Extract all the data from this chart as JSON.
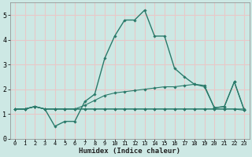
{
  "xlabel": "Humidex (Indice chaleur)",
  "ylabel": "",
  "xlim": [
    -0.5,
    23.5
  ],
  "ylim": [
    0,
    5.5
  ],
  "yticks": [
    0,
    1,
    2,
    3,
    4,
    5
  ],
  "xticks": [
    0,
    1,
    2,
    3,
    4,
    5,
    6,
    7,
    8,
    9,
    10,
    11,
    12,
    13,
    14,
    15,
    16,
    17,
    18,
    19,
    20,
    21,
    22,
    23
  ],
  "bg_color": "#cde8e4",
  "grid_color_major": "#e8c8c8",
  "grid_color_minor": "#e8c8c8",
  "line_color": "#2a7a6a",
  "marker_color": "#2a7a6a",
  "series": [
    {
      "x": [
        0,
        1,
        2,
        3,
        4,
        5,
        6,
        7,
        8,
        9,
        10,
        11,
        12,
        13,
        14,
        15,
        16,
        17,
        18,
        19,
        20,
        21,
        22,
        23
      ],
      "y": [
        1.2,
        1.2,
        1.3,
        1.2,
        0.5,
        0.7,
        0.7,
        1.5,
        1.8,
        3.25,
        4.15,
        4.8,
        4.8,
        5.2,
        4.15,
        4.15,
        2.85,
        2.5,
        2.2,
        2.15,
        1.25,
        1.3,
        2.3,
        1.15
      ],
      "lw": 1.0
    },
    {
      "x": [
        0,
        1,
        2,
        3,
        4,
        5,
        6,
        7,
        8,
        9,
        10,
        11,
        12,
        13,
        14,
        15,
        16,
        17,
        18,
        19,
        20,
        21,
        22,
        23
      ],
      "y": [
        1.2,
        1.2,
        1.3,
        1.2,
        1.2,
        1.2,
        1.2,
        1.35,
        1.55,
        1.75,
        1.85,
        1.9,
        1.95,
        2.0,
        2.05,
        2.1,
        2.1,
        2.15,
        2.2,
        2.1,
        1.25,
        1.3,
        2.3,
        1.15
      ],
      "lw": 0.8
    },
    {
      "x": [
        0,
        1,
        2,
        3,
        4,
        5,
        6,
        7,
        8,
        9,
        10,
        11,
        12,
        13,
        14,
        15,
        16,
        17,
        18,
        19,
        20,
        21,
        22,
        23
      ],
      "y": [
        1.2,
        1.2,
        1.3,
        1.2,
        1.2,
        1.2,
        1.2,
        1.2,
        1.2,
        1.2,
        1.2,
        1.2,
        1.2,
        1.2,
        1.2,
        1.2,
        1.2,
        1.2,
        1.2,
        1.2,
        1.2,
        1.2,
        1.2,
        1.2
      ],
      "lw": 0.8
    },
    {
      "x": [
        0,
        1,
        2,
        3,
        4,
        5,
        6,
        7,
        8,
        9,
        10,
        11,
        12,
        13,
        14,
        15,
        16,
        17,
        18,
        19,
        20,
        21,
        22,
        23
      ],
      "y": [
        1.2,
        1.2,
        1.3,
        1.2,
        1.2,
        1.2,
        1.2,
        1.2,
        1.2,
        1.2,
        1.2,
        1.2,
        1.2,
        1.2,
        1.2,
        1.2,
        1.2,
        1.2,
        1.2,
        1.2,
        1.2,
        1.2,
        1.2,
        1.15
      ],
      "lw": 0.8
    }
  ]
}
